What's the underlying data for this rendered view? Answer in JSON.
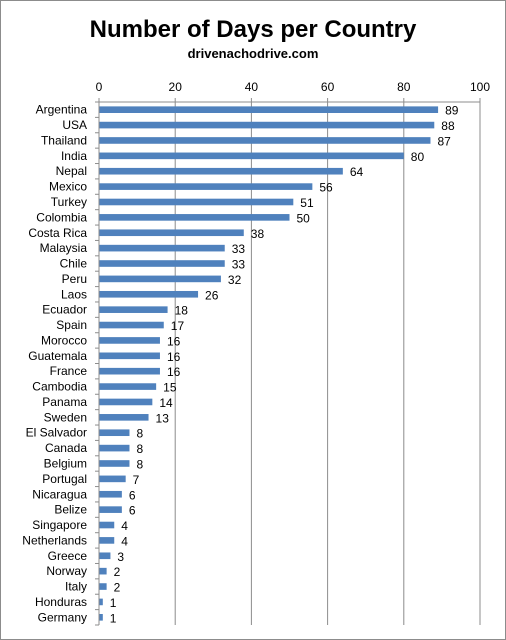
{
  "chart_data": {
    "type": "bar",
    "orientation": "horizontal",
    "title": "Number of Days per Country",
    "subtitle": "drivenachodrive.com",
    "xlabel": "",
    "ylabel": "",
    "xlim": [
      0,
      100
    ],
    "x_ticks": [
      "0",
      "20",
      "40",
      "60",
      "80",
      "100"
    ],
    "axis_position": "top",
    "grid": true,
    "legend": "none",
    "bar_color": "#4f81bd",
    "categories": [
      "Argentina",
      "USA",
      "Thailand",
      "India",
      "Nepal",
      "Mexico",
      "Turkey",
      "Colombia",
      "Costa Rica",
      "Malaysia",
      "Chile",
      "Peru",
      "Laos",
      "Ecuador",
      "Spain",
      "Morocco",
      "Guatemala",
      "France",
      "Cambodia",
      "Panama",
      "Sweden",
      "El Salvador",
      "Canada",
      "Belgium",
      "Portugal",
      "Nicaragua",
      "Belize",
      "Singapore",
      "Netherlands",
      "Greece",
      "Norway",
      "Italy",
      "Honduras",
      "Germany"
    ],
    "values": [
      89,
      88,
      87,
      80,
      64,
      56,
      51,
      50,
      38,
      33,
      33,
      32,
      26,
      18,
      17,
      16,
      16,
      16,
      15,
      14,
      13,
      8,
      8,
      8,
      7,
      6,
      6,
      4,
      4,
      3,
      2,
      2,
      1,
      1
    ],
    "value_labels": [
      "89",
      "88",
      "87",
      "80",
      "64",
      "56",
      "51",
      "50",
      "38",
      "33",
      "33",
      "32",
      "26",
      "18",
      "17",
      "16",
      "16",
      "16",
      "15",
      "14",
      "13",
      "8",
      "8",
      "8",
      "7",
      "6",
      "6",
      "4",
      "4",
      "3",
      "2",
      "2",
      "1",
      "1"
    ]
  }
}
